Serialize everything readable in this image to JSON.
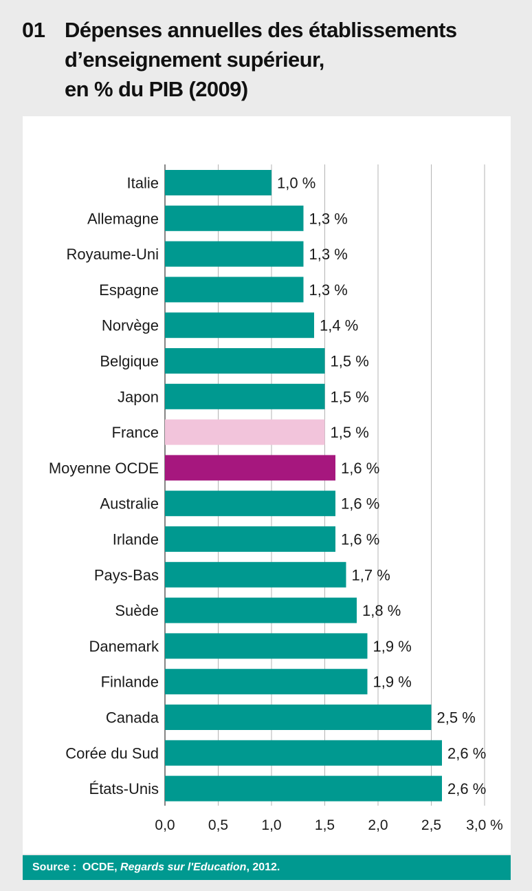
{
  "header": {
    "number": "01",
    "title_lines": [
      "Dépenses annuelles des établissements",
      "d’enseignement supérieur,",
      "en % du PIB (2009)"
    ]
  },
  "source": {
    "label": "Source :",
    "org": "OCDE,",
    "publication": "Regards sur l'Education",
    "year": ", 2012."
  },
  "colors": {
    "default": "#009990",
    "france": "#f2c4db",
    "oecd_average": "#a6177e",
    "gridline": "#b3b3b3"
  },
  "chart_data": {
    "type": "bar",
    "orientation": "horizontal",
    "categories": [
      "Italie",
      "Allemagne",
      "Royaume-Uni",
      "Espagne",
      "Norvège",
      "Belgique",
      "Japon",
      "France",
      "Moyenne OCDE",
      "Australie",
      "Irlande",
      "Pays-Bas",
      "Suède",
      "Danemark",
      "Finlande",
      "Canada",
      "Corée du Sud",
      "États-Unis"
    ],
    "values": [
      1.0,
      1.3,
      1.3,
      1.3,
      1.4,
      1.5,
      1.5,
      1.5,
      1.6,
      1.6,
      1.6,
      1.7,
      1.8,
      1.9,
      1.9,
      2.5,
      2.6,
      2.6
    ],
    "value_labels": [
      "1,0 %",
      "1,3 %",
      "1,3 %",
      "1,3 %",
      "1,4 %",
      "1,5 %",
      "1,5 %",
      "1,5 %",
      "1,6 %",
      "1,6 %",
      "1,6 %",
      "1,7 %",
      "1,8 %",
      "1,9 %",
      "1,9 %",
      "2,5 %",
      "2,6 %",
      "2,6 %"
    ],
    "bar_colors": [
      "default",
      "default",
      "default",
      "default",
      "default",
      "default",
      "default",
      "france",
      "oecd_average",
      "default",
      "default",
      "default",
      "default",
      "default",
      "default",
      "default",
      "default",
      "default"
    ],
    "xlim": [
      0,
      3.0
    ],
    "x_ticks": [
      0,
      0.5,
      1.0,
      1.5,
      2.0,
      2.5,
      3.0
    ],
    "x_tick_labels": [
      "0,0",
      "0,5",
      "1,0",
      "1,5",
      "2,0",
      "2,5",
      "3,0 %"
    ],
    "grid": "vertical",
    "legend": "none"
  }
}
